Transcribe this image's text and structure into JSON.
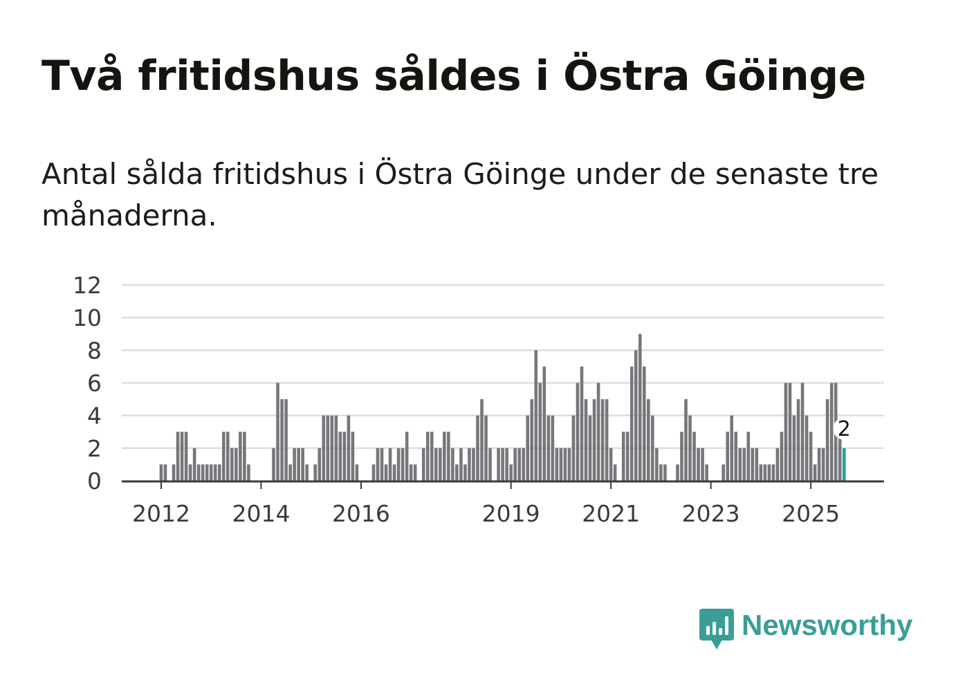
{
  "header": {
    "title": "Två fritidshus såldes i Östra Göinge",
    "subtitle": "Antal sålda fritidshus i Östra Göinge under de senaste tre månaderna."
  },
  "brand": {
    "name": "Newsworthy",
    "color": "#3a9e97",
    "icon": "newsworthy-logo-icon"
  },
  "colors": {
    "bar": "#77767b",
    "highlight": "#26a09b",
    "grid": "#dddddd",
    "axis": "#3a3a3a",
    "text": "#3a3a3a"
  },
  "chart_data": {
    "type": "bar",
    "title": "Två fritidshus såldes i Östra Göinge",
    "subtitle": "Antal sålda fritidshus i Östra Göinge under de senaste tre månaderna.",
    "xlabel": "",
    "ylabel": "",
    "ylim": [
      0,
      12
    ],
    "yticks": [
      0,
      2,
      4,
      6,
      8,
      10,
      12
    ],
    "grid": true,
    "start_month": "2011-04",
    "xtick_labels": [
      {
        "label": "2012",
        "month": "2012-01"
      },
      {
        "label": "2014",
        "month": "2014-01"
      },
      {
        "label": "2016",
        "month": "2016-01"
      },
      {
        "label": "2019",
        "month": "2019-01"
      },
      {
        "label": "2021",
        "month": "2021-01"
      },
      {
        "label": "2023",
        "month": "2023-01"
      },
      {
        "label": "2025",
        "month": "2025-01"
      }
    ],
    "values": [
      0,
      0,
      0,
      0,
      0,
      0,
      0,
      0,
      0,
      1,
      1,
      0,
      1,
      3,
      3,
      3,
      1,
      2,
      1,
      1,
      1,
      1,
      1,
      1,
      3,
      3,
      2,
      2,
      3,
      3,
      1,
      0,
      0,
      0,
      0,
      0,
      2,
      6,
      5,
      5,
      1,
      2,
      2,
      2,
      1,
      0,
      1,
      2,
      4,
      4,
      4,
      4,
      3,
      3,
      4,
      3,
      1,
      0,
      0,
      0,
      1,
      2,
      2,
      1,
      2,
      1,
      2,
      2,
      3,
      1,
      1,
      0,
      2,
      3,
      3,
      2,
      2,
      3,
      3,
      2,
      1,
      2,
      1,
      2,
      2,
      4,
      5,
      4,
      2,
      0,
      2,
      2,
      2,
      1,
      2,
      2,
      2,
      4,
      5,
      8,
      6,
      7,
      4,
      4,
      2,
      2,
      2,
      2,
      4,
      6,
      7,
      5,
      4,
      5,
      6,
      5,
      5,
      2,
      1,
      0,
      3,
      3,
      7,
      8,
      9,
      7,
      5,
      4,
      2,
      1,
      1,
      0,
      0,
      1,
      3,
      5,
      4,
      3,
      2,
      2,
      1,
      0,
      0,
      0,
      1,
      3,
      4,
      3,
      2,
      2,
      3,
      2,
      2,
      1,
      1,
      1,
      1,
      2,
      3,
      6,
      6,
      4,
      5,
      6,
      4,
      3,
      1,
      2,
      2,
      5,
      6,
      6,
      3,
      2
    ],
    "highlight_last": true,
    "annotation": {
      "label": "2",
      "value": 2
    }
  }
}
